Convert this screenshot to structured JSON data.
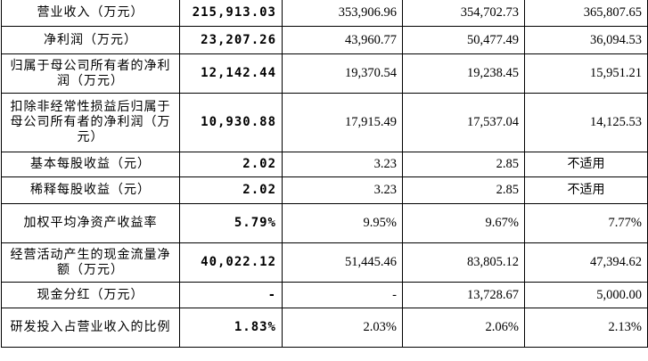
{
  "table": {
    "rows": [
      {
        "label": "营业收入（万元）",
        "current": "215,913.03",
        "p1": "353,906.96",
        "p2": "354,702.73",
        "p3": "365,807.65"
      },
      {
        "label": "净利润（万元）",
        "current": "23,207.26",
        "p1": "43,960.77",
        "p2": "50,477.49",
        "p3": "36,094.53"
      },
      {
        "label": "归属于母公司所有者的净利润（万元）",
        "current": "12,142.44",
        "p1": "19,370.54",
        "p2": "19,238.45",
        "p3": "15,951.21"
      },
      {
        "label": "扣除非经常性损益后归属于母公司所有者的净利润（万元）",
        "current": "10,930.88",
        "p1": "17,915.49",
        "p2": "17,537.04",
        "p3": "14,125.53"
      },
      {
        "label": "基本每股收益（元）",
        "current": "2.02",
        "p1": "3.23",
        "p2": "2.85",
        "p3": "不适用"
      },
      {
        "label": "稀释每股收益（元）",
        "current": "2.02",
        "p1": "3.23",
        "p2": "2.85",
        "p3": "不适用"
      },
      {
        "label": "加权平均净资产收益率",
        "current": "5.79%",
        "p1": "9.95%",
        "p2": "9.67%",
        "p3": "7.77%"
      },
      {
        "label": "经营活动产生的现金流量净额（万元）",
        "current": "40,022.12",
        "p1": "51,445.46",
        "p2": "83,805.12",
        "p3": "47,394.62"
      },
      {
        "label": "现金分红（万元）",
        "current": "-",
        "p1": "-",
        "p2": "13,728.67",
        "p3": "5,000.00"
      },
      {
        "label": "研发投入占营业收入的比例",
        "current": "1.83%",
        "p1": "2.03%",
        "p2": "2.06%",
        "p3": "2.13%"
      }
    ]
  }
}
